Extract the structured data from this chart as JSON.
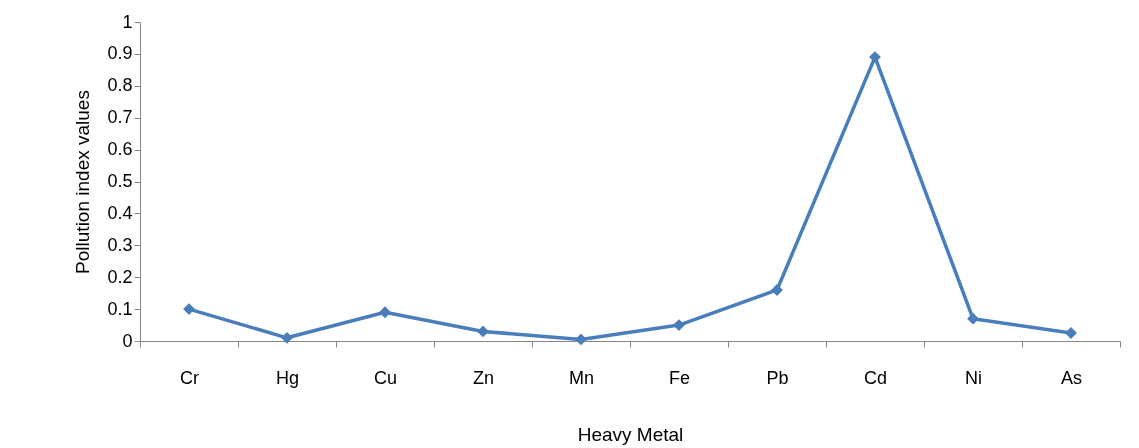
{
  "chart_data": {
    "type": "line",
    "xlabel": "Heavy Metal",
    "ylabel": "Pollution index values",
    "categories": [
      "Cr",
      "Hg",
      "Cu",
      "Zn",
      "Mn",
      "Fe",
      "Pb",
      "Cd",
      "Ni",
      "As"
    ],
    "series": [
      {
        "color": "#4a7ebb",
        "values": [
          0.1,
          0.01,
          0.09,
          0.03,
          0.005,
          0.05,
          0.16,
          0.89,
          0.07,
          0.025
        ]
      }
    ],
    "ylim": [
      0,
      1
    ],
    "yticks": [
      0,
      0.1,
      0.2,
      0.3,
      0.4,
      0.5,
      0.6,
      0.7,
      0.8,
      0.9,
      1
    ],
    "grid": false,
    "legend": false,
    "marker": "diamond",
    "line_style": "solid"
  }
}
